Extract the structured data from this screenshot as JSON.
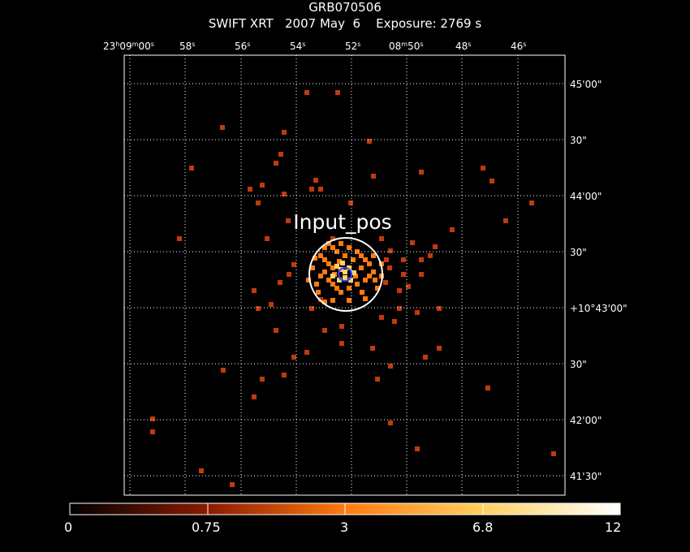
{
  "header": {
    "object": "GRB070506",
    "subtitle": "SWIFT XRT   2007 May  6    Exposure: 2769 s"
  },
  "annotation": {
    "label": "Input_pos"
  },
  "ra_axis": {
    "ticks": [
      {
        "h": "23",
        "m": "09",
        "s": "00"
      },
      {
        "s": "58"
      },
      {
        "s": "56"
      },
      {
        "s": "54"
      },
      {
        "s": "52"
      },
      {
        "m": "08",
        "s": "50"
      },
      {
        "s": "48"
      },
      {
        "s": "46"
      }
    ]
  },
  "dec_axis": {
    "ticks": [
      "45'00\"",
      "30\"",
      "44'00\"",
      "30\"",
      "+10°43'00\"",
      "30\"",
      "42'00\"",
      "41'30\""
    ]
  },
  "colorbar": {
    "labels": [
      "0",
      "0.75",
      "3",
      "6.8",
      "12"
    ],
    "stops": [
      "#000000",
      "#3a0000",
      "#8a1e00",
      "#ff8000",
      "#ffd040",
      "#ffffff"
    ]
  },
  "colors": {
    "grid": "#ffffff",
    "source_circle": "#ffffff",
    "input_circle": "#3a3aff",
    "dim_counts": "#c03a0e",
    "mid_counts": "#ff7a10",
    "bright_counts": "#ffd36a"
  }
}
